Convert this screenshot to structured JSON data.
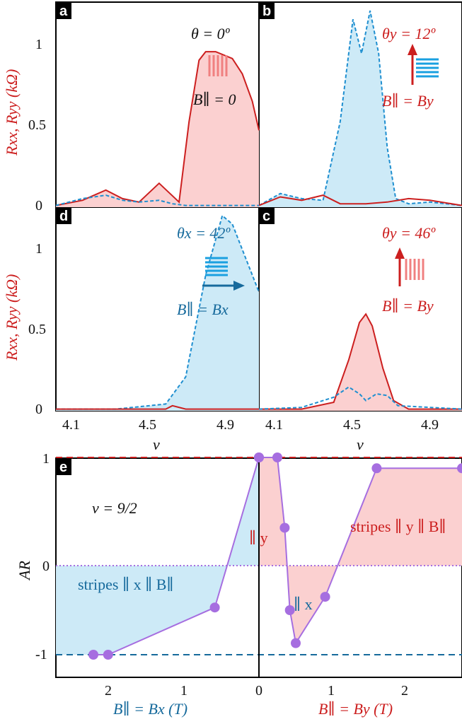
{
  "colors": {
    "red": "#cc1f1f",
    "red_fill": "#fbd0d0",
    "blue": "#1f8fd0",
    "blue_fill": "#cdeaf7",
    "purple": "#a66ee0",
    "dark_blue": "#166a9c"
  },
  "panels": {
    "a": {
      "label": "a",
      "theta": "θ = 0º",
      "field": "B∥ = 0"
    },
    "b": {
      "label": "b",
      "theta": "θy = 12º",
      "field": "B∥ = By"
    },
    "d": {
      "label": "d",
      "theta": "θx = 42º",
      "field": "B∥ = Bx"
    },
    "c": {
      "label": "c",
      "theta": "θy = 46º",
      "field": "B∥ = By"
    },
    "e": {
      "label": "e",
      "nu": "ν = 9/2",
      "stripes_x": "stripes ∥ x ∥ B∥",
      "stripes_y": "stripes ∥ y ∥ B∥",
      "par_y": "∥ y",
      "par_x": "∥ x"
    }
  },
  "axes": {
    "y_upper": "Rxx, Ryy (kΩ)",
    "y_upper_ticks": [
      "0",
      "0.5",
      "1"
    ],
    "x_nu": "ν",
    "x_nu_ticks": [
      "4.1",
      "4.5",
      "4.9"
    ],
    "y_e": "AR",
    "y_e_ticks": [
      "1",
      "0",
      "-1"
    ],
    "x_e_left": "B∥ = Bx (T)",
    "x_e_right": "B∥ = By (T)",
    "x_e_left_ticks": [
      "2",
      "1",
      "0"
    ],
    "x_e_right_ticks": [
      "1",
      "2"
    ]
  },
  "chart_data": [
    {
      "panel": "a",
      "type": "line",
      "xlabel": "ν",
      "ylabel": "Rxx, Ryy (kΩ)",
      "xlim": [
        3.97,
        4.58
      ],
      "ylim": [
        0,
        1.2
      ],
      "series": [
        {
          "name": "Rxx",
          "x": [
            3.97,
            4.05,
            4.12,
            4.17,
            4.22,
            4.28,
            4.34,
            4.37,
            4.4,
            4.42,
            4.45,
            4.5,
            4.53,
            4.56,
            4.58
          ],
          "y": [
            0.01,
            0.04,
            0.1,
            0.05,
            0.03,
            0.14,
            0.03,
            0.5,
            0.86,
            0.91,
            0.91,
            0.87,
            0.78,
            0.62,
            0.45
          ]
        },
        {
          "name": "Ryy",
          "x": [
            3.97,
            4.05,
            4.12,
            4.17,
            4.22,
            4.28,
            4.32,
            4.36,
            4.42,
            4.5,
            4.58
          ],
          "y": [
            0.01,
            0.05,
            0.07,
            0.04,
            0.03,
            0.04,
            0.02,
            0.01,
            0.01,
            0.01,
            0.01
          ]
        }
      ]
    },
    {
      "panel": "b",
      "type": "line",
      "xlabel": "ν",
      "ylabel": "",
      "xlim": [
        4.0,
        4.95
      ],
      "ylim": [
        0,
        1.2
      ],
      "series": [
        {
          "name": "Ryy",
          "x": [
            4.0,
            4.1,
            4.2,
            4.3,
            4.38,
            4.44,
            4.48,
            4.52,
            4.56,
            4.6,
            4.64,
            4.7,
            4.8,
            4.95
          ],
          "y": [
            0.01,
            0.08,
            0.05,
            0.04,
            0.5,
            1.1,
            0.9,
            1.15,
            0.9,
            0.35,
            0.05,
            0.02,
            0.03,
            0.01
          ]
        },
        {
          "name": "Rxx",
          "x": [
            4.0,
            4.1,
            4.2,
            4.3,
            4.38,
            4.44,
            4.5,
            4.6,
            4.7,
            4.8,
            4.95
          ],
          "y": [
            0.01,
            0.06,
            0.04,
            0.07,
            0.02,
            0.02,
            0.02,
            0.03,
            0.05,
            0.04,
            0.01
          ]
        }
      ]
    },
    {
      "panel": "d",
      "type": "line",
      "xlabel": "ν",
      "ylabel": "Rxx, Ryy (kΩ)",
      "xlim": [
        3.97,
        4.58
      ],
      "ylim": [
        0,
        1.2
      ],
      "series": [
        {
          "name": "Ryy",
          "x": [
            3.97,
            4.05,
            4.15,
            4.3,
            4.36,
            4.42,
            4.47,
            4.5,
            4.53,
            4.58
          ],
          "y": [
            0.01,
            0.01,
            0.01,
            0.04,
            0.2,
            0.8,
            1.15,
            1.1,
            0.95,
            0.7
          ]
        },
        {
          "name": "Rxx",
          "x": [
            3.97,
            4.15,
            4.3,
            4.32,
            4.36,
            4.5,
            4.58
          ],
          "y": [
            0.01,
            0.01,
            0.01,
            0.03,
            0.01,
            0.01,
            0.01
          ]
        }
      ]
    },
    {
      "panel": "c",
      "type": "line",
      "xlabel": "ν",
      "ylabel": "",
      "xlim": [
        4.0,
        4.95
      ],
      "ylim": [
        0,
        1.2
      ],
      "series": [
        {
          "name": "Rxx",
          "x": [
            4.0,
            4.2,
            4.35,
            4.42,
            4.47,
            4.5,
            4.53,
            4.58,
            4.63,
            4.7,
            4.95
          ],
          "y": [
            0.01,
            0.01,
            0.05,
            0.3,
            0.52,
            0.57,
            0.5,
            0.25,
            0.06,
            0.01,
            0.01
          ]
        },
        {
          "name": "Ryy",
          "x": [
            4.0,
            4.2,
            4.35,
            4.42,
            4.47,
            4.5,
            4.55,
            4.6,
            4.65,
            4.95
          ],
          "y": [
            0.01,
            0.02,
            0.08,
            0.14,
            0.1,
            0.06,
            0.1,
            0.09,
            0.03,
            0.01
          ]
        }
      ]
    },
    {
      "panel": "e",
      "type": "scatter",
      "xlabel": "B∥ (T)",
      "ylabel": "AR",
      "series": [
        {
          "name": "AR vs Bx",
          "x": [
            2.25,
            2.05,
            0.6,
            0.0
          ],
          "y": [
            -1.0,
            -1.0,
            -0.47,
            1.0
          ]
        },
        {
          "name": "AR vs By",
          "x": [
            0.0,
            0.25,
            0.35,
            0.42,
            0.5,
            0.9,
            1.6,
            2.75
          ],
          "y": [
            1.0,
            1.0,
            0.35,
            -0.5,
            -0.87,
            -0.35,
            0.9,
            0.9
          ]
        }
      ]
    }
  ]
}
